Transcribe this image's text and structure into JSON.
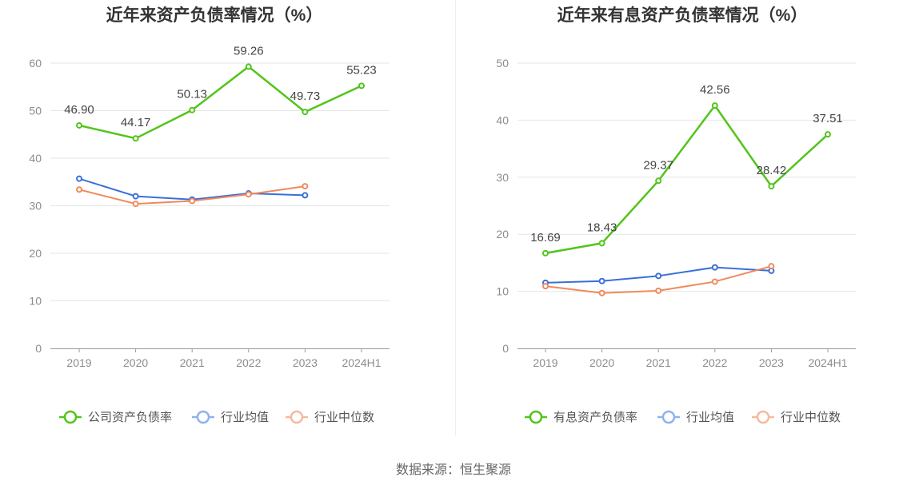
{
  "colors": {
    "company": "#52c41a",
    "avg": "#3a6fd8",
    "median": "#ef8a5d",
    "grid": "#e6e6e6",
    "axis": "#999999",
    "legend_avg": "#8fb1ef",
    "legend_median": "#f6b99d"
  },
  "chart_data": [
    {
      "type": "line",
      "title": "近年来资产负债率情况（%）",
      "categories": [
        "2019",
        "2020",
        "2021",
        "2022",
        "2023",
        "2024H1"
      ],
      "ylim": [
        0,
        60
      ],
      "yticks": [
        0,
        10,
        20,
        30,
        40,
        50,
        60
      ],
      "grid": true,
      "legend_placement": "bottom",
      "series": [
        {
          "name": "公司资产负债率",
          "key": "company",
          "values": [
            46.9,
            44.17,
            50.13,
            59.26,
            49.73,
            55.23
          ],
          "labels": [
            "46.90",
            "44.17",
            "50.13",
            "59.26",
            "49.73",
            "55.23"
          ]
        },
        {
          "name": "行业均值",
          "key": "avg",
          "values": [
            35.7,
            32.0,
            31.3,
            32.6,
            32.2,
            null
          ]
        },
        {
          "name": "行业中位数",
          "key": "median",
          "values": [
            33.4,
            30.4,
            31.0,
            32.4,
            34.1,
            null
          ]
        }
      ]
    },
    {
      "type": "line",
      "title": "近年来有息资产负债率情况（%）",
      "categories": [
        "2019",
        "2020",
        "2021",
        "2022",
        "2023",
        "2024H1"
      ],
      "ylim": [
        0,
        50
      ],
      "yticks": [
        0,
        10,
        20,
        30,
        40,
        50
      ],
      "grid": true,
      "legend_placement": "bottom",
      "series": [
        {
          "name": "有息资产负债率",
          "key": "company",
          "values": [
            16.69,
            18.43,
            29.37,
            42.56,
            28.42,
            37.51
          ],
          "labels": [
            "16.69",
            "18.43",
            "29.37",
            "42.56",
            "28.42",
            "37.51"
          ]
        },
        {
          "name": "行业均值",
          "key": "avg",
          "values": [
            11.5,
            11.8,
            12.7,
            14.2,
            13.6,
            null
          ]
        },
        {
          "name": "行业中位数",
          "key": "median",
          "values": [
            10.9,
            9.7,
            10.1,
            11.7,
            14.4,
            null
          ]
        }
      ]
    }
  ],
  "footer": {
    "source": "数据来源：恒生聚源"
  }
}
